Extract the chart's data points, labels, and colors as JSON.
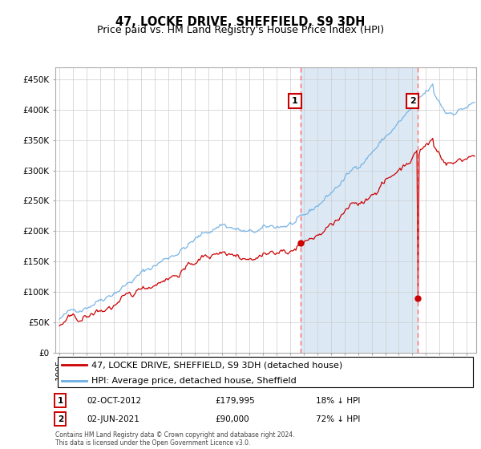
{
  "title": "47, LOCKE DRIVE, SHEFFIELD, S9 3DH",
  "subtitle": "Price paid vs. HM Land Registry's House Price Index (HPI)",
  "footer": "Contains HM Land Registry data © Crown copyright and database right 2024.\nThis data is licensed under the Open Government Licence v3.0.",
  "legend_line1": "47, LOCKE DRIVE, SHEFFIELD, S9 3DH (detached house)",
  "legend_line2": "HPI: Average price, detached house, Sheffield",
  "annotation1_date": "02-OCT-2012",
  "annotation1_price": "£179,995",
  "annotation1_hpi": "18% ↓ HPI",
  "annotation2_date": "02-JUN-2021",
  "annotation2_price": "£90,000",
  "annotation2_hpi": "72% ↓ HPI",
  "hpi_color": "#6aade4",
  "price_color": "#cc0000",
  "vline_color": "#ff6666",
  "highlight_color": "#dce9f5",
  "box_edge_color": "#cc0000",
  "ylim": [
    0,
    470000
  ],
  "yticks": [
    0,
    50000,
    100000,
    150000,
    200000,
    250000,
    300000,
    350000,
    400000,
    450000
  ],
  "ytick_labels": [
    "£0",
    "£50K",
    "£100K",
    "£150K",
    "£200K",
    "£250K",
    "£300K",
    "£350K",
    "£400K",
    "£450K"
  ],
  "sale1_year": 2012.75,
  "sale1_price": 179995,
  "sale2_year": 2021.4167,
  "sale2_price": 90000,
  "title_fontsize": 10.5,
  "subtitle_fontsize": 9,
  "axis_fontsize": 7.5,
  "legend_fontsize": 8,
  "ann_fontsize": 7.5
}
